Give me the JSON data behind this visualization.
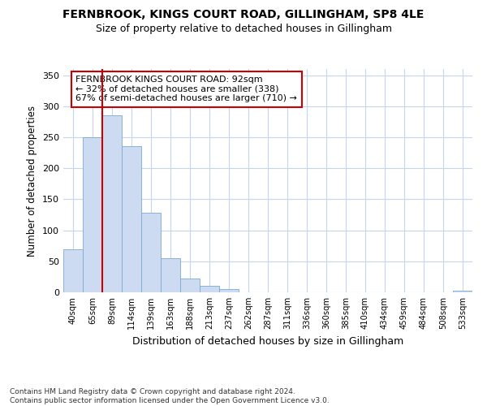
{
  "title1": "FERNBROOK, KINGS COURT ROAD, GILLINGHAM, SP8 4LE",
  "title2": "Size of property relative to detached houses in Gillingham",
  "xlabel": "Distribution of detached houses by size in Gillingham",
  "ylabel": "Number of detached properties",
  "categories": [
    "40sqm",
    "65sqm",
    "89sqm",
    "114sqm",
    "139sqm",
    "163sqm",
    "188sqm",
    "213sqm",
    "237sqm",
    "262sqm",
    "287sqm",
    "311sqm",
    "336sqm",
    "360sqm",
    "385sqm",
    "410sqm",
    "434sqm",
    "459sqm",
    "484sqm",
    "508sqm",
    "533sqm"
  ],
  "values": [
    70,
    250,
    285,
    235,
    128,
    55,
    22,
    10,
    5,
    0,
    0,
    0,
    0,
    0,
    0,
    0,
    0,
    0,
    0,
    0,
    2
  ],
  "bar_color": "#ccdaf2",
  "bar_edge_color": "#7aaad0",
  "vline_color": "#cc0000",
  "annotation_text": "FERNBROOK KINGS COURT ROAD: 92sqm\n← 32% of detached houses are smaller (338)\n67% of semi-detached houses are larger (710) →",
  "annotation_box_color": "#ffffff",
  "annotation_box_edge": "#cc0000",
  "ylim": [
    0,
    360
  ],
  "yticks": [
    0,
    50,
    100,
    150,
    200,
    250,
    300,
    350
  ],
  "footer": "Contains HM Land Registry data © Crown copyright and database right 2024.\nContains public sector information licensed under the Open Government Licence v3.0.",
  "bg_color": "#ffffff",
  "grid_color": "#c5d5ea"
}
